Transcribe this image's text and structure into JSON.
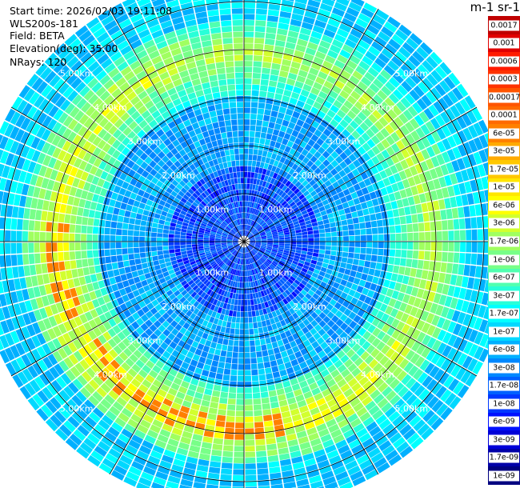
{
  "header": {
    "start_time": "Start time: 2026/02/03 19:11:08",
    "instrument": "WLS200s-181",
    "field": "Field: BETA",
    "elevation": "Elevation(deg): 35.00",
    "nrays": "NRays: 120"
  },
  "colorbar": {
    "title": "m-1 sr-1",
    "levels": [
      "0.0017",
      "0.001",
      "0.0006",
      "0.0003",
      "0.00017",
      "0.0001",
      "6e-05",
      "3e-05",
      "1.7e-05",
      "1e-05",
      "6e-06",
      "3e-06",
      "1.7e-06",
      "1e-06",
      "6e-07",
      "3e-07",
      "1.7e-07",
      "1e-07",
      "6e-08",
      "3e-08",
      "1.7e-08",
      "1e-08",
      "6e-09",
      "3e-09",
      "1.7e-09",
      "1e-09"
    ],
    "colors": [
      "#c00000",
      "#e00000",
      "#ff1a00",
      "#ff3300",
      "#ff5500",
      "#ff6a00",
      "#ff8000",
      "#ffaa00",
      "#ffc800",
      "#ffe600",
      "#ffff00",
      "#d2ff2e",
      "#a0ff60",
      "#78ff88",
      "#50ffb0",
      "#28ffd8",
      "#00ffff",
      "#00d8ff",
      "#00b0ff",
      "#0088ff",
      "#0060ff",
      "#0038ff",
      "#0010ff",
      "#0000d8",
      "#0000a8",
      "#000080"
    ]
  },
  "chart_data": {
    "type": "heatmap",
    "subtype": "polar PPI scan",
    "field": "BETA",
    "elevation_deg": 35.0,
    "n_rays": 120,
    "range_rings_km": [
      1,
      2,
      3,
      4,
      5
    ],
    "ring_labels": [
      "1.00km",
      "2.00km",
      "3.00km",
      "4.00km",
      "5.00km"
    ],
    "max_range_km": 5.6,
    "approx_band_levels": [
      {
        "range_km": [
          0.0,
          1.6
        ],
        "dominant_level": "3e-08"
      },
      {
        "range_km": [
          1.6,
          3.0
        ],
        "dominant_level": "1.7e-07"
      },
      {
        "range_km": [
          3.0,
          4.6
        ],
        "dominant_level": "1.7e-06 to 1e-05"
      },
      {
        "range_km": [
          4.6,
          5.6
        ],
        "dominant_level": "3e-08 to 1e-07"
      }
    ]
  }
}
